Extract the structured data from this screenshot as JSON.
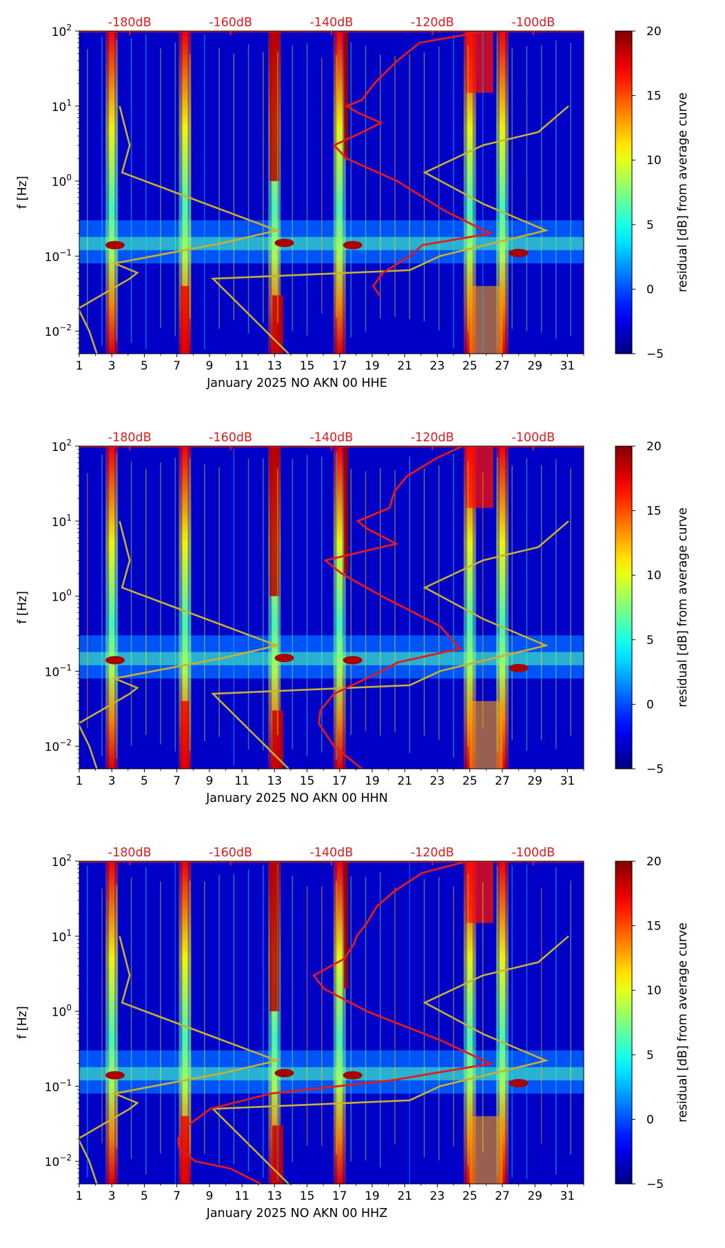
{
  "chart_data": [
    {
      "type": "heatmap",
      "xlabel": "January 2025 NO AKN 00 HHE",
      "ylabel": "f [Hz]",
      "colorbar_label": "residual [dB] from average curve",
      "colorbar_ticks": [
        "20",
        "15",
        "10",
        "5",
        "0",
        "−5"
      ],
      "xticks": [
        "1",
        "3",
        "5",
        "7",
        "9",
        "11",
        "13",
        "15",
        "17",
        "19",
        "21",
        "23",
        "25",
        "27",
        "29",
        "31"
      ],
      "xlim": [
        1,
        32
      ],
      "yticks": [
        {
          "base": "10",
          "exp": "2"
        },
        {
          "base": "10",
          "exp": "1"
        },
        {
          "base": "10",
          "exp": "0"
        },
        {
          "base": "10",
          "exp": "−1"
        },
        {
          "base": "10",
          "exp": "−2"
        }
      ],
      "ylim_hz": [
        0.005,
        100
      ],
      "db_scale_ticks": [
        "-180dB",
        "-160dB",
        "-140dB",
        "-120dB",
        "-100dB"
      ],
      "db_scale_range": [
        -190,
        -90
      ],
      "colorbar_range": [
        -5,
        20
      ],
      "average_psd_curve": {
        "name": "average PSD",
        "color": "#e41a1c",
        "points": [
          [
            0.03,
            -130.5
          ],
          [
            0.04,
            -131.7
          ],
          [
            0.06,
            -129.8
          ],
          [
            0.1,
            -124.5
          ],
          [
            0.14,
            -122.0
          ],
          [
            0.2,
            -108.5
          ],
          [
            0.4,
            -117.5
          ],
          [
            1.0,
            -127.0
          ],
          [
            2.0,
            -137.0
          ],
          [
            3.0,
            -139.5
          ],
          [
            4.5,
            -133.8
          ],
          [
            6.0,
            -130.2
          ],
          [
            8.0,
            -134.5
          ],
          [
            10.0,
            -137.0
          ],
          [
            12.0,
            -134.0
          ],
          [
            20.0,
            -131.5
          ],
          [
            40.0,
            -127.0
          ],
          [
            70.0,
            -122.5
          ],
          [
            100.0,
            -109.0
          ]
        ]
      },
      "noise_model_curves": [
        {
          "name": "low noise model",
          "color": "#c8b030",
          "points": [
            [
              0.005,
              -186.5
            ],
            [
              0.01,
              -188.0
            ],
            [
              0.02,
              -190.2
            ],
            [
              0.05,
              -180.0
            ],
            [
              0.06,
              -178.5
            ],
            [
              0.08,
              -183.0
            ],
            [
              0.15,
              -161.5
            ],
            [
              0.22,
              -150.8
            ],
            [
              0.5,
              -165.0
            ],
            [
              1.3,
              -181.5
            ],
            [
              3.0,
              -180.0
            ],
            [
              10.0,
              -182.0
            ]
          ]
        },
        {
          "name": "high noise model",
          "color": "#c8b030",
          "points": [
            [
              0.005,
              -148.5
            ],
            [
              0.05,
              -163.5
            ],
            [
              0.065,
              -124.5
            ],
            [
              0.1,
              -118.5
            ],
            [
              0.22,
              -97.5
            ],
            [
              0.5,
              -110.0
            ],
            [
              1.3,
              -121.5
            ],
            [
              3.0,
              -110.0
            ],
            [
              4.5,
              -99.0
            ],
            [
              10.0,
              -93.0
            ]
          ]
        }
      ],
      "bright_bands_days": [
        3,
        7.5,
        13,
        17,
        25,
        27
      ]
    },
    {
      "type": "heatmap",
      "xlabel": "January 2025 NO AKN 00 HHN",
      "ylabel": "f [Hz]",
      "colorbar_label": "residual [dB] from average curve",
      "colorbar_ticks": [
        "20",
        "15",
        "10",
        "5",
        "0",
        "−5"
      ],
      "xticks": [
        "1",
        "3",
        "5",
        "7",
        "9",
        "11",
        "13",
        "15",
        "17",
        "19",
        "21",
        "23",
        "25",
        "27",
        "29",
        "31"
      ],
      "xlim": [
        1,
        32
      ],
      "yticks": [
        {
          "base": "10",
          "exp": "2"
        },
        {
          "base": "10",
          "exp": "1"
        },
        {
          "base": "10",
          "exp": "0"
        },
        {
          "base": "10",
          "exp": "−1"
        },
        {
          "base": "10",
          "exp": "−2"
        }
      ],
      "ylim_hz": [
        0.005,
        100
      ],
      "db_scale_ticks": [
        "-180dB",
        "-160dB",
        "-140dB",
        "-120dB",
        "-100dB"
      ],
      "db_scale_range": [
        -190,
        -90
      ],
      "colorbar_range": [
        -5,
        20
      ],
      "average_psd_curve": {
        "name": "average PSD",
        "color": "#e41a1c",
        "points": [
          [
            0.005,
            -134.0
          ],
          [
            0.01,
            -139.5
          ],
          [
            0.02,
            -142.5
          ],
          [
            0.03,
            -142.2
          ],
          [
            0.05,
            -139.5
          ],
          [
            0.1,
            -130.0
          ],
          [
            0.13,
            -127.0
          ],
          [
            0.2,
            -114.5
          ],
          [
            0.4,
            -118.5
          ],
          [
            1.0,
            -130.0
          ],
          [
            2.0,
            -138.0
          ],
          [
            3.0,
            -141.2
          ],
          [
            5.0,
            -127.2
          ],
          [
            8.0,
            -133.0
          ],
          [
            10.0,
            -134.8
          ],
          [
            15.0,
            -128.5
          ],
          [
            25.0,
            -127.5
          ],
          [
            40.0,
            -125.0
          ],
          [
            70.0,
            -119.0
          ],
          [
            100.0,
            -114.0
          ]
        ]
      },
      "noise_model_curves": [
        {
          "name": "low noise model",
          "color": "#c8b030",
          "points": [
            [
              0.005,
              -186.5
            ],
            [
              0.01,
              -188.0
            ],
            [
              0.02,
              -190.2
            ],
            [
              0.05,
              -180.0
            ],
            [
              0.06,
              -178.5
            ],
            [
              0.08,
              -183.0
            ],
            [
              0.15,
              -161.5
            ],
            [
              0.22,
              -150.8
            ],
            [
              0.5,
              -165.0
            ],
            [
              1.3,
              -181.5
            ],
            [
              3.0,
              -180.0
            ],
            [
              10.0,
              -182.0
            ]
          ]
        },
        {
          "name": "high noise model",
          "color": "#c8b030",
          "points": [
            [
              0.005,
              -148.5
            ],
            [
              0.05,
              -163.5
            ],
            [
              0.065,
              -124.5
            ],
            [
              0.1,
              -118.5
            ],
            [
              0.22,
              -97.5
            ],
            [
              0.5,
              -110.0
            ],
            [
              1.3,
              -121.5
            ],
            [
              3.0,
              -110.0
            ],
            [
              4.5,
              -99.0
            ],
            [
              10.0,
              -93.0
            ]
          ]
        }
      ],
      "bright_bands_days": [
        3,
        7.5,
        13,
        17,
        25,
        27
      ]
    },
    {
      "type": "heatmap",
      "xlabel": "January 2025 NO AKN 00 HHZ",
      "ylabel": "f [Hz]",
      "colorbar_label": "residual [dB] from average curve",
      "colorbar_ticks": [
        "20",
        "15",
        "10",
        "5",
        "0",
        "−5"
      ],
      "xticks": [
        "1",
        "3",
        "5",
        "7",
        "9",
        "11",
        "13",
        "15",
        "17",
        "19",
        "21",
        "23",
        "25",
        "27",
        "29",
        "31"
      ],
      "xlim": [
        1,
        32
      ],
      "yticks": [
        {
          "base": "10",
          "exp": "2"
        },
        {
          "base": "10",
          "exp": "1"
        },
        {
          "base": "10",
          "exp": "0"
        },
        {
          "base": "10",
          "exp": "−1"
        },
        {
          "base": "10",
          "exp": "−2"
        }
      ],
      "ylim_hz": [
        0.005,
        100
      ],
      "db_scale_ticks": [
        "-180dB",
        "-160dB",
        "-140dB",
        "-120dB",
        "-100dB"
      ],
      "db_scale_range": [
        -190,
        -90
      ],
      "colorbar_range": [
        -5,
        20
      ],
      "average_psd_curve": {
        "name": "average PSD",
        "color": "#e41a1c",
        "points": [
          [
            0.005,
            -154.0
          ],
          [
            0.008,
            -160.0
          ],
          [
            0.01,
            -167.0
          ],
          [
            0.015,
            -170.2
          ],
          [
            0.02,
            -170.4
          ],
          [
            0.03,
            -168.5
          ],
          [
            0.05,
            -164.0
          ],
          [
            0.08,
            -152.0
          ],
          [
            0.12,
            -128.0
          ],
          [
            0.2,
            -108.5
          ],
          [
            0.4,
            -118.0
          ],
          [
            1.0,
            -133.0
          ],
          [
            2.0,
            -141.5
          ],
          [
            3.0,
            -143.5
          ],
          [
            5.0,
            -137.5
          ],
          [
            8.0,
            -135.5
          ],
          [
            10.0,
            -135.0
          ],
          [
            15.0,
            -133.0
          ],
          [
            25.0,
            -131.0
          ],
          [
            40.0,
            -127.5
          ],
          [
            70.0,
            -122.0
          ],
          [
            100.0,
            -113.0
          ]
        ]
      },
      "noise_model_curves": [
        {
          "name": "low noise model",
          "color": "#c8b030",
          "points": [
            [
              0.005,
              -186.5
            ],
            [
              0.01,
              -188.0
            ],
            [
              0.02,
              -190.2
            ],
            [
              0.05,
              -180.0
            ],
            [
              0.06,
              -178.5
            ],
            [
              0.08,
              -183.0
            ],
            [
              0.15,
              -161.5
            ],
            [
              0.22,
              -150.8
            ],
            [
              0.5,
              -165.0
            ],
            [
              1.3,
              -181.5
            ],
            [
              3.0,
              -180.0
            ],
            [
              10.0,
              -182.0
            ]
          ]
        },
        {
          "name": "high noise model",
          "color": "#c8b030",
          "points": [
            [
              0.005,
              -148.5
            ],
            [
              0.05,
              -163.5
            ],
            [
              0.065,
              -124.5
            ],
            [
              0.1,
              -118.5
            ],
            [
              0.22,
              -97.5
            ],
            [
              0.5,
              -110.0
            ],
            [
              1.3,
              -121.5
            ],
            [
              3.0,
              -110.0
            ],
            [
              4.5,
              -99.0
            ],
            [
              10.0,
              -93.0
            ]
          ]
        }
      ],
      "bright_bands_days": [
        3,
        7.5,
        13,
        17,
        25,
        27
      ]
    }
  ]
}
